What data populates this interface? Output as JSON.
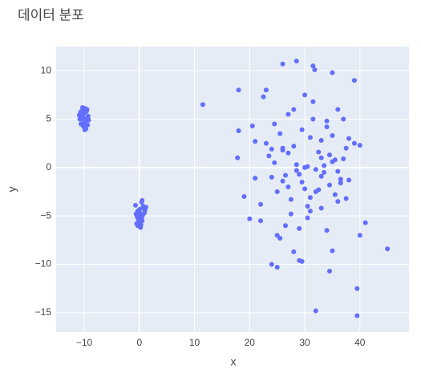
{
  "chart_data": {
    "type": "scatter",
    "title": "데이터 분포",
    "x_label": "x",
    "y_label": "y",
    "color": "#636efa",
    "plot_bg": "#e5ecf6",
    "grid": true,
    "zeroline": true,
    "xlim": [
      -15.1,
      48.9
    ],
    "ylim": [
      -17,
      12.5
    ],
    "xticks": [
      {
        "value": -10,
        "label": "−10"
      },
      0,
      10,
      20,
      30,
      40
    ],
    "yticks": [
      {
        "value": -15,
        "label": "−15"
      },
      {
        "value": -10,
        "label": "−10"
      },
      {
        "value": -5,
        "label": "−5"
      },
      0,
      5,
      10
    ],
    "x": [
      -10.2,
      -9.8,
      -10.5,
      -9.5,
      -10.0,
      -10.8,
      -9.3,
      -10.3,
      -9.9,
      -10.6,
      -9.6,
      -10.1,
      -10.4,
      -9.7,
      -10.9,
      -9.2,
      -10.0,
      -10.2,
      -9.8,
      -10.5,
      -9.4,
      -10.7,
      -9.9,
      -10.1,
      -10.3,
      0.1,
      -0.3,
      0.5,
      -0.6,
      0.8,
      0.2,
      -0.2,
      0.4,
      -0.5,
      0.7,
      0.0,
      -0.4,
      0.3,
      1.0,
      -0.1,
      0.6,
      -0.7,
      0.2,
      0.9,
      -0.3,
      0.4,
      0.1,
      -0.2,
      1.2,
      0.5,
      11.5,
      17.8,
      18.0,
      18.0,
      19.0,
      20.0,
      20.5,
      21.0,
      22.0,
      22.5,
      23.0,
      24.0,
      25.0,
      25.5,
      26.0,
      28.5,
      29.0,
      29.5,
      31.5,
      31.8,
      32.0,
      34.0,
      34.5,
      35.0,
      35.0,
      39.0,
      39.5,
      39.5,
      40.0,
      41.0,
      45.0,
      38.0,
      39.0,
      40.0,
      37.0,
      36.0,
      24.5,
      26.5,
      27.0,
      28.0,
      29.5,
      30.0,
      31.0,
      32.5,
      33.0,
      33.5,
      34.0,
      35.5,
      36.5,
      37.5,
      25.0,
      26.0,
      27.5,
      28.5,
      30.5,
      31.5,
      32.0,
      33.0,
      34.5,
      35.0,
      36.0,
      23.5,
      24.0,
      25.5,
      27.0,
      28.0,
      29.0,
      30.0,
      31.0,
      32.5,
      34.0,
      35.5,
      37.0,
      38.0,
      22.0,
      23.0,
      26.5,
      28.5,
      29.5,
      30.5,
      33.5,
      36.5,
      24.5,
      27.5,
      31.5,
      33.0,
      21.0,
      26.0,
      30.0,
      34.5,
      29.0,
      31.0,
      27.0,
      25.0,
      32.0,
      35.0,
      36.0,
      28.0,
      30.5,
      33.0,
      24.0,
      37.5,
      26.0
    ],
    "y": [
      5.2,
      4.8,
      5.5,
      6.0,
      4.2,
      5.0,
      5.3,
      6.2,
      3.9,
      4.5,
      5.8,
      4.6,
      5.9,
      4.0,
      5.4,
      4.9,
      5.6,
      4.3,
      6.1,
      5.1,
      4.4,
      5.7,
      5.0,
      4.7,
      5.3,
      -5.0,
      -4.5,
      -5.5,
      -4.8,
      -4.2,
      -6.2,
      -5.3,
      -3.6,
      -5.8,
      -4.0,
      -4.6,
      -5.1,
      -5.9,
      -4.4,
      -5.6,
      -4.9,
      -3.9,
      -5.4,
      -4.7,
      -6.0,
      -5.2,
      -4.3,
      -5.7,
      -4.1,
      -3.4,
      6.5,
      1.0,
      8.0,
      3.8,
      -3.0,
      -5.3,
      4.3,
      2.7,
      -5.5,
      7.3,
      8.0,
      -10.0,
      -10.3,
      -7.3,
      10.7,
      11.0,
      -9.6,
      -9.7,
      10.5,
      10.1,
      -14.8,
      -6.5,
      -10.7,
      -8.6,
      9.8,
      9.0,
      -12.5,
      -15.3,
      -7.0,
      -5.7,
      -8.4,
      3.0,
      2.5,
      2.3,
      5.0,
      6.0,
      0.5,
      -0.8,
      1.5,
      2.2,
      -1.5,
      0.0,
      3.1,
      -2.3,
      1.0,
      -0.5,
      4.2,
      0.8,
      -1.2,
      2.0,
      -2.5,
      1.8,
      -3.3,
      0.3,
      -4.0,
      5.0,
      -0.2,
      2.8,
      -1.8,
      0.6,
      -3.5,
      1.2,
      -1.0,
      3.5,
      -2.0,
      6.0,
      -0.7,
      7.5,
      -4.5,
      1.6,
      4.8,
      -2.8,
      0.9,
      -1.3,
      -3.8,
      2.5,
      -6.0,
      -0.3,
      3.9,
      -5.2,
      0.2,
      -1.6,
      4.5,
      -4.8,
      6.8,
      -0.9,
      -1.1,
      2.0,
      -2.2,
      1.3,
      -6.3,
      -3.1,
      5.5,
      -7.0,
      -2.5,
      3.3,
      -0.4,
      -8.7,
      0.1,
      -4.2,
      1.9,
      -3.2,
      -1.4
    ]
  }
}
